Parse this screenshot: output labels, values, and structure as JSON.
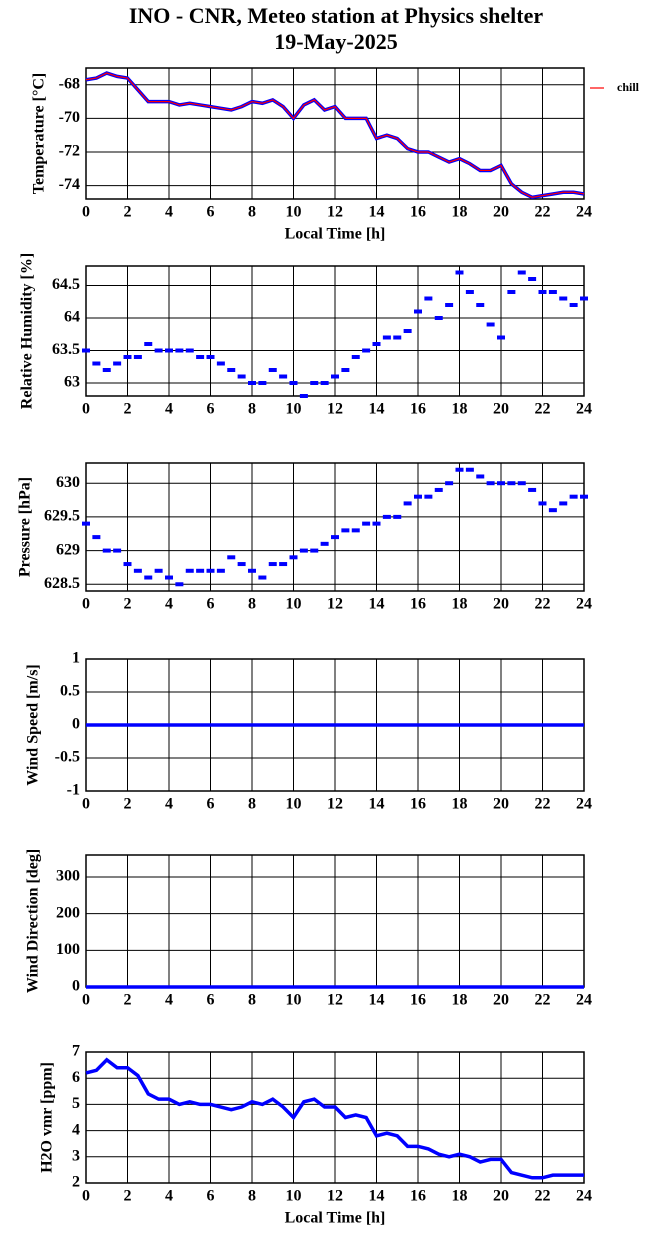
{
  "chart_data": [
    {
      "type": "line",
      "title": "INO - CNR, Meteo station at Physics shelter",
      "subtitle": "19-May-2025",
      "ylabel": "Temperature [°C]",
      "xlabel": "Local Time [h]",
      "x": [
        0,
        0.5,
        1,
        1.5,
        2,
        2.5,
        3,
        3.5,
        4,
        4.5,
        5,
        5.5,
        6,
        6.5,
        7,
        7.5,
        8,
        8.5,
        9,
        9.5,
        10,
        10.5,
        11,
        11.5,
        12,
        12.5,
        13,
        13.5,
        14,
        14.5,
        15,
        15.5,
        16,
        16.5,
        17,
        17.5,
        18,
        18.5,
        19,
        19.5,
        20,
        20.5,
        21,
        21.5,
        22,
        22.5,
        23,
        23.5,
        24
      ],
      "series": [
        {
          "color": "#0000ff",
          "values": [
            -67.7,
            -67.6,
            -67.3,
            -67.5,
            -67.6,
            -68.3,
            -69.0,
            -69.0,
            -69.0,
            -69.2,
            -69.1,
            -69.2,
            -69.3,
            -69.4,
            -69.5,
            -69.3,
            -69.0,
            -69.1,
            -68.9,
            -69.3,
            -70.0,
            -69.2,
            -68.9,
            -69.5,
            -69.3,
            -70.0,
            -70.0,
            -70.0,
            -71.2,
            -71.0,
            -71.2,
            -71.8,
            -72.0,
            -72.0,
            -72.3,
            -72.6,
            -72.4,
            -72.7,
            -73.1,
            -73.1,
            -72.8,
            -73.9,
            -74.4,
            -74.7,
            -74.6,
            -74.5,
            -74.4,
            -74.4,
            -74.5
          ]
        },
        {
          "name": "chill",
          "color": "#ff0000",
          "values": [
            -67.7,
            -67.6,
            -67.3,
            -67.5,
            -67.6,
            -68.3,
            -69.0,
            -69.0,
            -69.0,
            -69.2,
            -69.1,
            -69.2,
            -69.3,
            -69.4,
            -69.5,
            -69.3,
            -69.0,
            -69.1,
            -68.9,
            -69.3,
            -70.0,
            -69.2,
            -68.9,
            -69.5,
            -69.3,
            -70.0,
            -70.0,
            -70.0,
            -71.2,
            -71.0,
            -71.2,
            -71.8,
            -72.0,
            -72.0,
            -72.3,
            -72.6,
            -72.4,
            -72.7,
            -73.1,
            -73.1,
            -72.8,
            -73.9,
            -74.4,
            -74.7,
            -74.6,
            -74.5,
            -74.4,
            -74.4,
            -74.5
          ]
        }
      ],
      "xlim": [
        0,
        24
      ],
      "xticks": [
        0,
        2,
        4,
        6,
        8,
        10,
        12,
        14,
        16,
        18,
        20,
        22,
        24
      ],
      "ylim": [
        -74.8,
        -67
      ],
      "yticks": [
        -74,
        -72,
        -70,
        -68
      ],
      "grid": true,
      "legend": "outside-right"
    },
    {
      "type": "scatter",
      "ylabel": "Relative Humidity [%]",
      "x": [
        0,
        0.5,
        1,
        1.5,
        2,
        2.5,
        3,
        3.5,
        4,
        4.5,
        5,
        5.5,
        6,
        6.5,
        7,
        7.5,
        8,
        8.5,
        9,
        9.5,
        10,
        10.5,
        11,
        11.5,
        12,
        12.5,
        13,
        13.5,
        14,
        14.5,
        15,
        15.5,
        16,
        16.5,
        17,
        17.5,
        18,
        18.5,
        19,
        19.5,
        20,
        20.5,
        21,
        21.5,
        22,
        22.5,
        23,
        23.5,
        24
      ],
      "series": [
        {
          "color": "#0000ff",
          "values": [
            63.5,
            63.3,
            63.2,
            63.3,
            63.4,
            63.4,
            63.6,
            63.5,
            63.5,
            63.5,
            63.5,
            63.4,
            63.4,
            63.3,
            63.2,
            63.1,
            63.0,
            63.0,
            63.2,
            63.1,
            63.0,
            62.8,
            63.0,
            63.0,
            63.1,
            63.2,
            63.4,
            63.5,
            63.6,
            63.7,
            63.7,
            63.8,
            64.1,
            64.3,
            64.0,
            64.2,
            64.7,
            64.4,
            64.2,
            63.9,
            63.7,
            64.4,
            64.7,
            64.6,
            64.4,
            64.4,
            64.3,
            64.2,
            64.3
          ]
        }
      ],
      "xlim": [
        0,
        24
      ],
      "xticks": [
        0,
        2,
        4,
        6,
        8,
        10,
        12,
        14,
        16,
        18,
        20,
        22,
        24
      ],
      "ylim": [
        62.8,
        64.8
      ],
      "yticks": [
        63,
        63.5,
        64,
        64.5
      ],
      "grid": true
    },
    {
      "type": "scatter",
      "ylabel": "Pressure [hPa]",
      "x": [
        0,
        0.5,
        1,
        1.5,
        2,
        2.5,
        3,
        3.5,
        4,
        4.5,
        5,
        5.5,
        6,
        6.5,
        7,
        7.5,
        8,
        8.5,
        9,
        9.5,
        10,
        10.5,
        11,
        11.5,
        12,
        12.5,
        13,
        13.5,
        14,
        14.5,
        15,
        15.5,
        16,
        16.5,
        17,
        17.5,
        18,
        18.5,
        19,
        19.5,
        20,
        20.5,
        21,
        21.5,
        22,
        22.5,
        23,
        23.5,
        24
      ],
      "series": [
        {
          "color": "#0000ff",
          "values": [
            629.4,
            629.2,
            629.0,
            629.0,
            628.8,
            628.7,
            628.6,
            628.7,
            628.6,
            628.5,
            628.7,
            628.7,
            628.7,
            628.7,
            628.9,
            628.8,
            628.7,
            628.6,
            628.8,
            628.8,
            628.9,
            629.0,
            629.0,
            629.1,
            629.2,
            629.3,
            629.3,
            629.4,
            629.4,
            629.5,
            629.5,
            629.7,
            629.8,
            629.8,
            629.9,
            630.0,
            630.2,
            630.2,
            630.1,
            630.0,
            630.0,
            630.0,
            630.0,
            629.9,
            629.7,
            629.6,
            629.7,
            629.8,
            629.8
          ]
        }
      ],
      "xlim": [
        0,
        24
      ],
      "xticks": [
        0,
        2,
        4,
        6,
        8,
        10,
        12,
        14,
        16,
        18,
        20,
        22,
        24
      ],
      "ylim": [
        628.4,
        630.3
      ],
      "yticks": [
        628.5,
        629,
        629.5,
        630
      ],
      "grid": true
    },
    {
      "type": "line",
      "ylabel": "Wind Speed [m/s]",
      "x": [
        0,
        0.5,
        1,
        1.5,
        2,
        2.5,
        3,
        3.5,
        4,
        4.5,
        5,
        5.5,
        6,
        6.5,
        7,
        7.5,
        8,
        8.5,
        9,
        9.5,
        10,
        10.5,
        11,
        11.5,
        12,
        12.5,
        13,
        13.5,
        14,
        14.5,
        15,
        15.5,
        16,
        16.5,
        17,
        17.5,
        18,
        18.5,
        19,
        19.5,
        20,
        20.5,
        21,
        21.5,
        22,
        22.5,
        23,
        23.5,
        24
      ],
      "series": [
        {
          "color": "#0000ff",
          "values": [
            0,
            0,
            0,
            0,
            0,
            0,
            0,
            0,
            0,
            0,
            0,
            0,
            0,
            0,
            0,
            0,
            0,
            0,
            0,
            0,
            0,
            0,
            0,
            0,
            0,
            0,
            0,
            0,
            0,
            0,
            0,
            0,
            0,
            0,
            0,
            0,
            0,
            0,
            0,
            0,
            0,
            0,
            0,
            0,
            0,
            0,
            0,
            0,
            0
          ]
        }
      ],
      "xlim": [
        0,
        24
      ],
      "xticks": [
        0,
        2,
        4,
        6,
        8,
        10,
        12,
        14,
        16,
        18,
        20,
        22,
        24
      ],
      "ylim": [
        -1,
        1
      ],
      "yticks": [
        -1,
        -0.5,
        0,
        0.5,
        1
      ],
      "grid": true
    },
    {
      "type": "line",
      "ylabel": "Wind Direction [deg]",
      "x": [
        0,
        0.5,
        1,
        1.5,
        2,
        2.5,
        3,
        3.5,
        4,
        4.5,
        5,
        5.5,
        6,
        6.5,
        7,
        7.5,
        8,
        8.5,
        9,
        9.5,
        10,
        10.5,
        11,
        11.5,
        12,
        12.5,
        13,
        13.5,
        14,
        14.5,
        15,
        15.5,
        16,
        16.5,
        17,
        17.5,
        18,
        18.5,
        19,
        19.5,
        20,
        20.5,
        21,
        21.5,
        22,
        22.5,
        23,
        23.5,
        24
      ],
      "series": [
        {
          "color": "#0000ff",
          "values": [
            0,
            0,
            0,
            0,
            0,
            0,
            0,
            0,
            0,
            0,
            0,
            0,
            0,
            0,
            0,
            0,
            0,
            0,
            0,
            0,
            0,
            0,
            0,
            0,
            0,
            0,
            0,
            0,
            0,
            0,
            0,
            0,
            0,
            0,
            0,
            0,
            0,
            0,
            0,
            0,
            0,
            0,
            0,
            0,
            0,
            0,
            0,
            0,
            0
          ]
        }
      ],
      "xlim": [
        0,
        24
      ],
      "xticks": [
        0,
        2,
        4,
        6,
        8,
        10,
        12,
        14,
        16,
        18,
        20,
        22,
        24
      ],
      "ylim": [
        0,
        360
      ],
      "yticks": [
        0,
        100,
        200,
        300
      ],
      "grid": true
    },
    {
      "type": "line",
      "ylabel": "H2O vmr [ppm]",
      "xlabel": "Local Time [h]",
      "x": [
        0,
        0.5,
        1,
        1.5,
        2,
        2.5,
        3,
        3.5,
        4,
        4.5,
        5,
        5.5,
        6,
        6.5,
        7,
        7.5,
        8,
        8.5,
        9,
        9.5,
        10,
        10.5,
        11,
        11.5,
        12,
        12.5,
        13,
        13.5,
        14,
        14.5,
        15,
        15.5,
        16,
        16.5,
        17,
        17.5,
        18,
        18.5,
        19,
        19.5,
        20,
        20.5,
        21,
        21.5,
        22,
        22.5,
        23,
        23.5,
        24
      ],
      "series": [
        {
          "color": "#0000ff",
          "values": [
            6.2,
            6.3,
            6.7,
            6.4,
            6.4,
            6.1,
            5.4,
            5.2,
            5.2,
            5.0,
            5.1,
            5.0,
            5.0,
            4.9,
            4.8,
            4.9,
            5.1,
            5.0,
            5.2,
            4.9,
            4.5,
            5.1,
            5.2,
            4.9,
            4.9,
            4.5,
            4.6,
            4.5,
            3.8,
            3.9,
            3.8,
            3.4,
            3.4,
            3.3,
            3.1,
            3.0,
            3.1,
            3.0,
            2.8,
            2.9,
            2.9,
            2.4,
            2.3,
            2.2,
            2.2,
            2.3,
            2.3,
            2.3,
            2.3
          ]
        }
      ],
      "xlim": [
        0,
        24
      ],
      "xticks": [
        0,
        2,
        4,
        6,
        8,
        10,
        12,
        14,
        16,
        18,
        20,
        22,
        24
      ],
      "ylim": [
        2,
        7
      ],
      "yticks": [
        2,
        3,
        4,
        5,
        6,
        7
      ],
      "grid": true
    }
  ]
}
